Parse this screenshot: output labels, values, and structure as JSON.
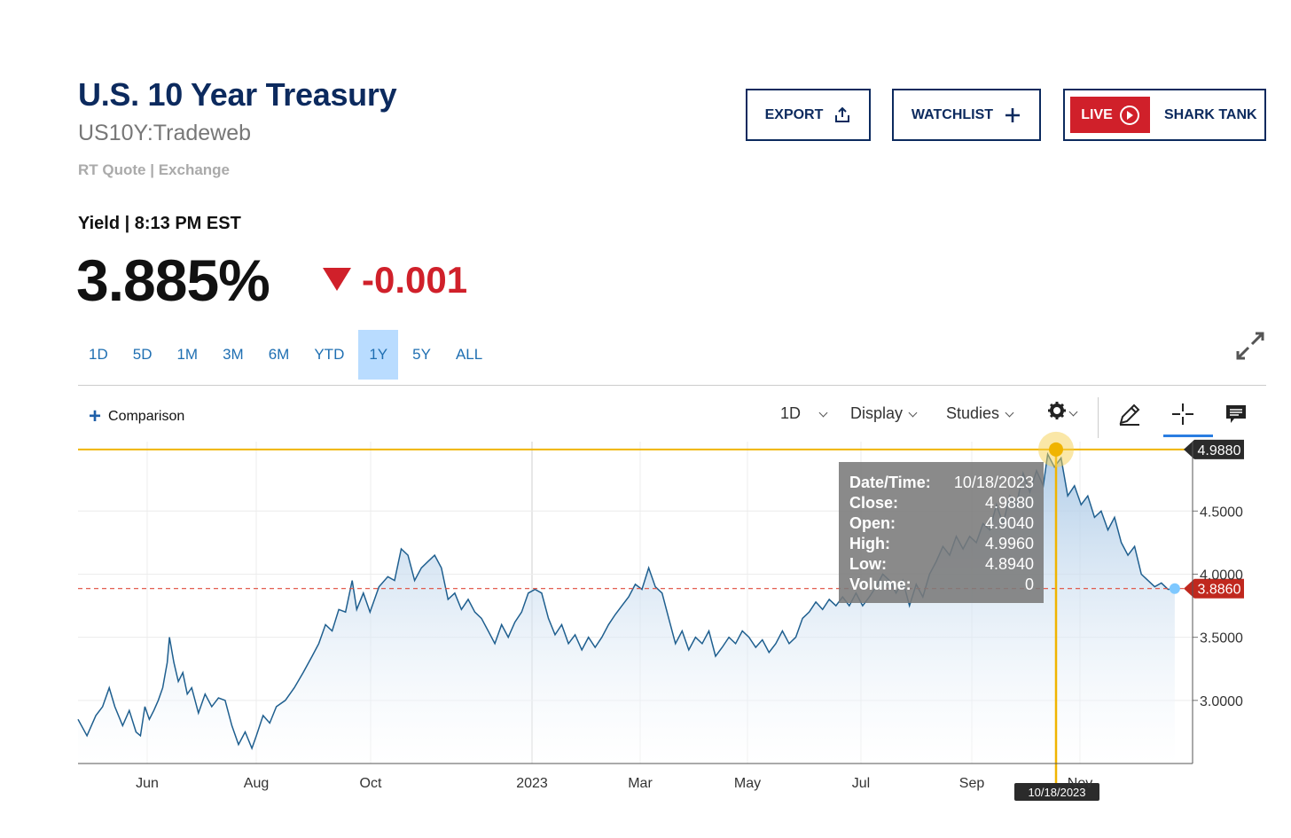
{
  "header": {
    "title": "U.S. 10 Year Treasury",
    "symbol": "US10Y:Tradeweb",
    "quote_source": "RT Quote | Exchange",
    "yield_label": "Yield | 8:13 PM EST",
    "price": "3.885%",
    "change": "-0.001",
    "change_color": "#d0202a"
  },
  "actions": {
    "export_label": "EXPORT",
    "watchlist_label": "WATCHLIST",
    "live_label": "LIVE",
    "shark_tank_label": "SHARK TANK"
  },
  "ranges": [
    {
      "label": "1D",
      "active": false
    },
    {
      "label": "5D",
      "active": false
    },
    {
      "label": "1M",
      "active": false
    },
    {
      "label": "3M",
      "active": false
    },
    {
      "label": "6M",
      "active": false
    },
    {
      "label": "YTD",
      "active": false
    },
    {
      "label": "1Y",
      "active": true
    },
    {
      "label": "5Y",
      "active": false
    },
    {
      "label": "ALL",
      "active": false
    }
  ],
  "toolbar": {
    "comparison_label": "Comparison",
    "interval_label": "1D",
    "display_label": "Display",
    "studies_label": "Studies",
    "icons": [
      "gear-icon",
      "pencil-icon",
      "crosshair-icon",
      "comment-icon"
    ]
  },
  "chart_data": {
    "type": "area",
    "x_ticks": [
      "Jun",
      "Aug",
      "Oct",
      "2023",
      "Mar",
      "May",
      "Jul",
      "Sep",
      "Nov"
    ],
    "y_ticks": [
      "3.0000",
      "3.5000",
      "4.0000",
      "4.5000"
    ],
    "ylim": [
      2.5,
      5.05
    ],
    "grid": true,
    "last_value": 3.886,
    "last_label": "3.8860",
    "crosshair_value": 4.988,
    "crosshair_label": "4.9880",
    "crosshair_date": "10/18/2023",
    "tooltip": [
      {
        "label": "Date/Time:",
        "value": "10/18/2023"
      },
      {
        "label": "Close:",
        "value": "4.9880"
      },
      {
        "label": "Open:",
        "value": "4.9040"
      },
      {
        "label": "High:",
        "value": "4.9960"
      },
      {
        "label": "Low:",
        "value": "4.8940"
      },
      {
        "label": "Volume:",
        "value": "0"
      }
    ],
    "colors": {
      "line": "#1f5f8f",
      "crosshair": "#f0b400",
      "last": "#c0281e",
      "fill": "#a9c8e6"
    },
    "series_points": [
      [
        0.0,
        2.85
      ],
      [
        0.008,
        2.72
      ],
      [
        0.016,
        2.88
      ],
      [
        0.022,
        2.95
      ],
      [
        0.028,
        3.1
      ],
      [
        0.033,
        2.95
      ],
      [
        0.04,
        2.8
      ],
      [
        0.046,
        2.92
      ],
      [
        0.052,
        2.75
      ],
      [
        0.056,
        2.72
      ],
      [
        0.06,
        2.95
      ],
      [
        0.064,
        2.85
      ],
      [
        0.068,
        2.92
      ],
      [
        0.072,
        3.0
      ],
      [
        0.076,
        3.1
      ],
      [
        0.08,
        3.3
      ],
      [
        0.082,
        3.5
      ],
      [
        0.086,
        3.3
      ],
      [
        0.09,
        3.15
      ],
      [
        0.094,
        3.22
      ],
      [
        0.098,
        3.05
      ],
      [
        0.102,
        3.1
      ],
      [
        0.108,
        2.9
      ],
      [
        0.114,
        3.05
      ],
      [
        0.12,
        2.95
      ],
      [
        0.126,
        3.02
      ],
      [
        0.132,
        3.0
      ],
      [
        0.138,
        2.8
      ],
      [
        0.144,
        2.65
      ],
      [
        0.15,
        2.75
      ],
      [
        0.156,
        2.62
      ],
      [
        0.16,
        2.72
      ],
      [
        0.166,
        2.88
      ],
      [
        0.172,
        2.82
      ],
      [
        0.178,
        2.95
      ],
      [
        0.186,
        3.0
      ],
      [
        0.194,
        3.1
      ],
      [
        0.202,
        3.22
      ],
      [
        0.21,
        3.35
      ],
      [
        0.216,
        3.45
      ],
      [
        0.222,
        3.6
      ],
      [
        0.228,
        3.55
      ],
      [
        0.234,
        3.72
      ],
      [
        0.24,
        3.7
      ],
      [
        0.246,
        3.95
      ],
      [
        0.25,
        3.72
      ],
      [
        0.256,
        3.85
      ],
      [
        0.262,
        3.7
      ],
      [
        0.27,
        3.9
      ],
      [
        0.278,
        3.98
      ],
      [
        0.284,
        3.95
      ],
      [
        0.29,
        4.2
      ],
      [
        0.296,
        4.15
      ],
      [
        0.302,
        3.95
      ],
      [
        0.308,
        4.05
      ],
      [
        0.314,
        4.1
      ],
      [
        0.32,
        4.15
      ],
      [
        0.326,
        4.05
      ],
      [
        0.332,
        3.8
      ],
      [
        0.338,
        3.85
      ],
      [
        0.344,
        3.72
      ],
      [
        0.35,
        3.8
      ],
      [
        0.356,
        3.7
      ],
      [
        0.362,
        3.65
      ],
      [
        0.368,
        3.55
      ],
      [
        0.374,
        3.45
      ],
      [
        0.38,
        3.6
      ],
      [
        0.386,
        3.5
      ],
      [
        0.392,
        3.62
      ],
      [
        0.398,
        3.7
      ],
      [
        0.404,
        3.85
      ],
      [
        0.41,
        3.88
      ],
      [
        0.416,
        3.85
      ],
      [
        0.422,
        3.65
      ],
      [
        0.428,
        3.52
      ],
      [
        0.434,
        3.6
      ],
      [
        0.44,
        3.45
      ],
      [
        0.446,
        3.52
      ],
      [
        0.452,
        3.4
      ],
      [
        0.458,
        3.5
      ],
      [
        0.464,
        3.42
      ],
      [
        0.47,
        3.5
      ],
      [
        0.476,
        3.6
      ],
      [
        0.482,
        3.68
      ],
      [
        0.488,
        3.75
      ],
      [
        0.494,
        3.82
      ],
      [
        0.5,
        3.92
      ],
      [
        0.506,
        3.88
      ],
      [
        0.512,
        4.05
      ],
      [
        0.518,
        3.9
      ],
      [
        0.524,
        3.85
      ],
      [
        0.53,
        3.65
      ],
      [
        0.536,
        3.45
      ],
      [
        0.542,
        3.55
      ],
      [
        0.548,
        3.4
      ],
      [
        0.554,
        3.5
      ],
      [
        0.56,
        3.45
      ],
      [
        0.566,
        3.55
      ],
      [
        0.572,
        3.35
      ],
      [
        0.578,
        3.42
      ],
      [
        0.584,
        3.5
      ],
      [
        0.59,
        3.45
      ],
      [
        0.596,
        3.55
      ],
      [
        0.602,
        3.5
      ],
      [
        0.608,
        3.42
      ],
      [
        0.614,
        3.48
      ],
      [
        0.62,
        3.38
      ],
      [
        0.626,
        3.45
      ],
      [
        0.632,
        3.55
      ],
      [
        0.638,
        3.45
      ],
      [
        0.644,
        3.5
      ],
      [
        0.65,
        3.65
      ],
      [
        0.656,
        3.7
      ],
      [
        0.662,
        3.78
      ],
      [
        0.668,
        3.72
      ],
      [
        0.674,
        3.8
      ],
      [
        0.68,
        3.75
      ],
      [
        0.686,
        3.82
      ],
      [
        0.692,
        3.75
      ],
      [
        0.698,
        3.85
      ],
      [
        0.704,
        3.75
      ],
      [
        0.71,
        3.82
      ],
      [
        0.716,
        3.9
      ],
      [
        0.722,
        4.0
      ],
      [
        0.728,
        3.95
      ],
      [
        0.734,
        3.85
      ],
      [
        0.74,
        3.95
      ],
      [
        0.746,
        3.75
      ],
      [
        0.752,
        3.92
      ],
      [
        0.758,
        3.82
      ],
      [
        0.764,
        4.0
      ],
      [
        0.77,
        4.1
      ],
      [
        0.776,
        4.22
      ],
      [
        0.782,
        4.15
      ],
      [
        0.788,
        4.3
      ],
      [
        0.794,
        4.2
      ],
      [
        0.8,
        4.3
      ],
      [
        0.806,
        4.25
      ],
      [
        0.812,
        4.4
      ],
      [
        0.818,
        4.35
      ],
      [
        0.824,
        4.55
      ],
      [
        0.83,
        4.4
      ],
      [
        0.836,
        4.62
      ],
      [
        0.842,
        4.55
      ],
      [
        0.848,
        4.8
      ],
      [
        0.854,
        4.65
      ],
      [
        0.86,
        4.82
      ],
      [
        0.866,
        4.7
      ],
      [
        0.87,
        4.95
      ],
      [
        0.876,
        4.85
      ],
      [
        0.882,
        4.92
      ],
      [
        0.888,
        4.62
      ],
      [
        0.894,
        4.7
      ],
      [
        0.9,
        4.55
      ],
      [
        0.906,
        4.62
      ],
      [
        0.912,
        4.45
      ],
      [
        0.918,
        4.5
      ],
      [
        0.924,
        4.35
      ],
      [
        0.93,
        4.45
      ],
      [
        0.936,
        4.25
      ],
      [
        0.942,
        4.15
      ],
      [
        0.948,
        4.22
      ],
      [
        0.954,
        4.0
      ],
      [
        0.96,
        3.95
      ],
      [
        0.966,
        3.9
      ],
      [
        0.972,
        3.93
      ],
      [
        0.978,
        3.88
      ],
      [
        0.984,
        3.886
      ]
    ]
  }
}
